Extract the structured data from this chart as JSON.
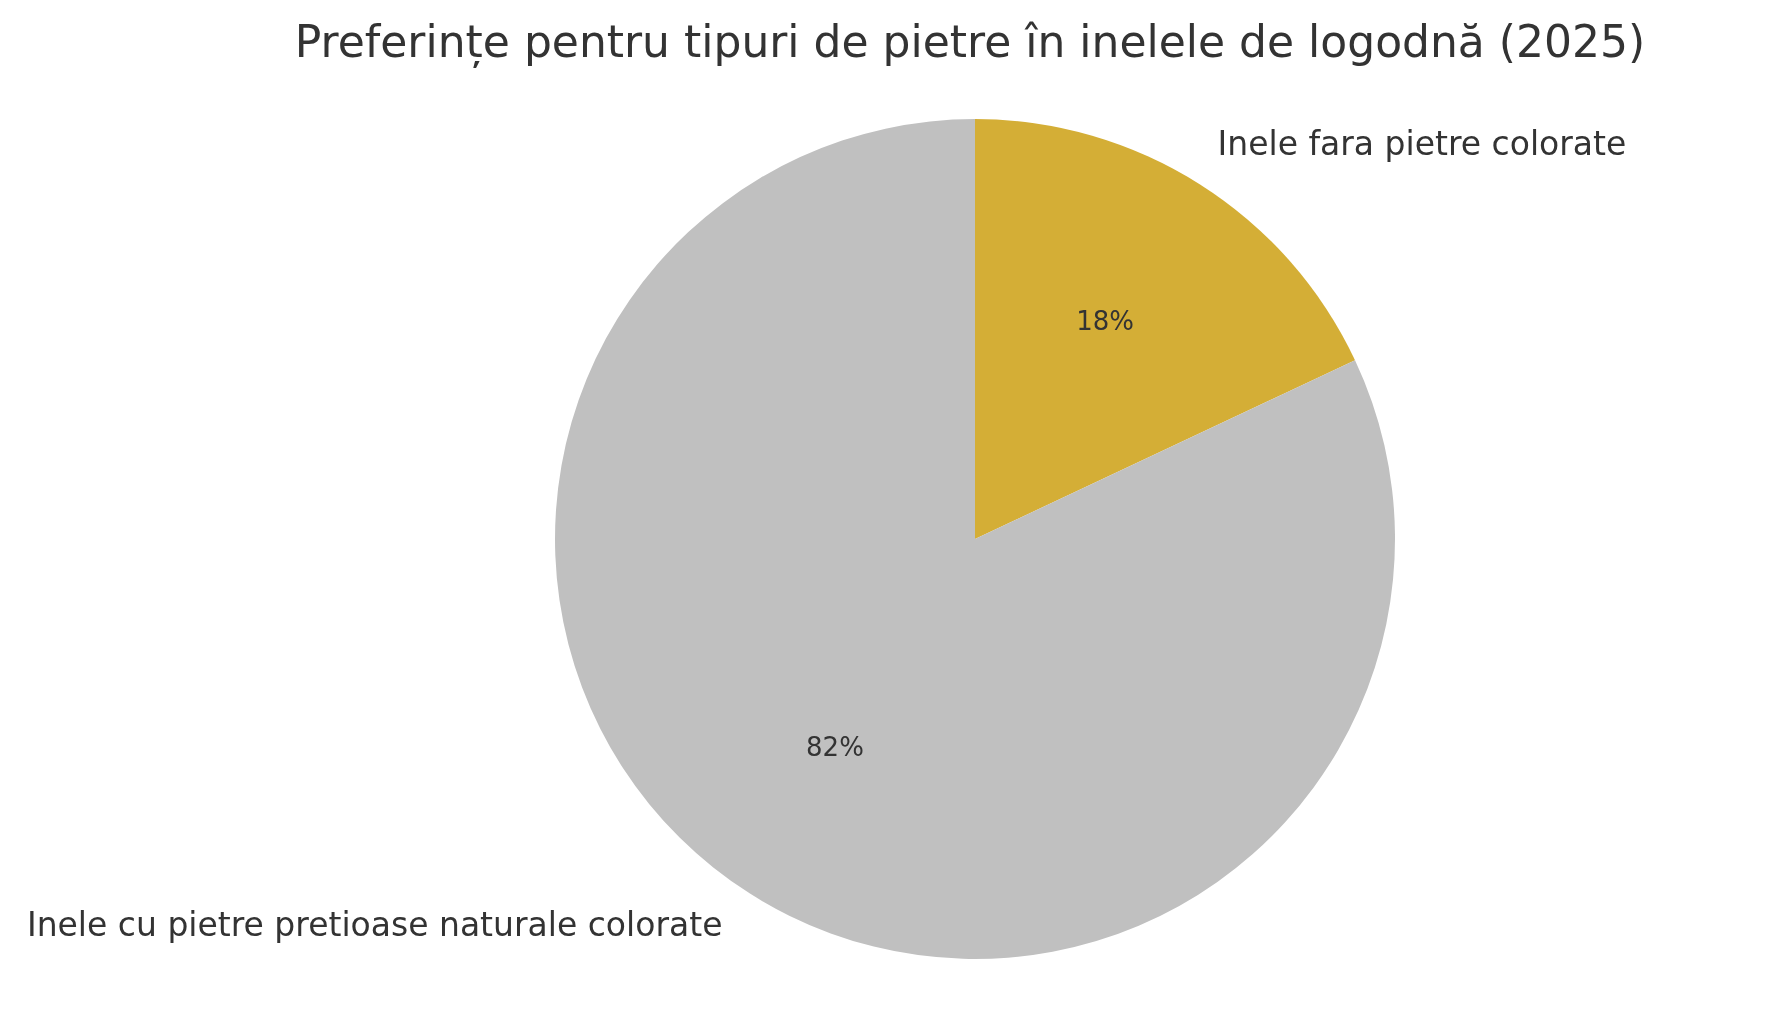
{
  "chart_data": {
    "type": "pie",
    "title": "Preferințe pentru tipuri de pietre în inelele de logodnă (2025)",
    "categories": [
      "Inele fara pietre colorate",
      "Inele cu pietre pretioase naturale colorate"
    ],
    "values": [
      18,
      82
    ],
    "colors": [
      "#d4ae36",
      "#c0c0c0"
    ],
    "value_labels": [
      "18%",
      "82%"
    ]
  }
}
